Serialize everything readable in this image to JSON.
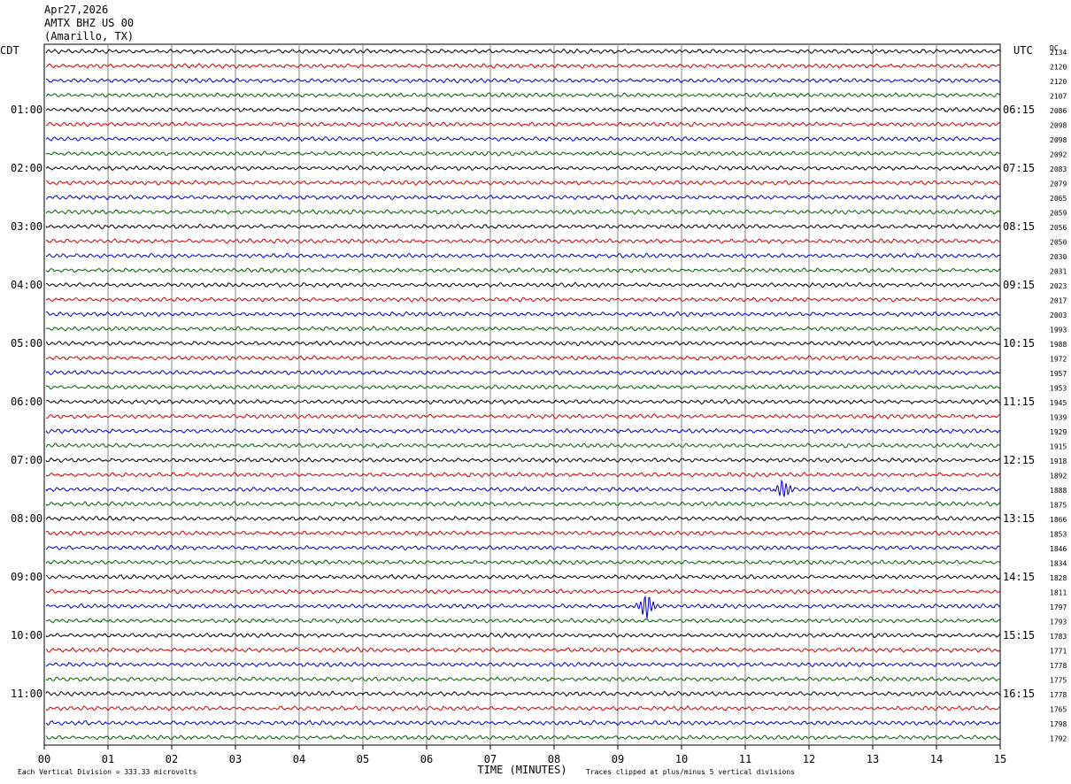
{
  "header": {
    "date": "Apr27,2026",
    "station": "AMTX BHZ US 00",
    "location": "(Amarillo, TX)"
  },
  "chart_data": {
    "type": "line",
    "title": "Apr27,2026 AMTX BHZ US 00 (Amarillo, TX)",
    "xlabel": "TIME (MINUTES)",
    "left_axis_label": "CDT",
    "right_axis_label": "UTC",
    "dc_label": "DC",
    "x_ticks": [
      "00",
      "01",
      "02",
      "03",
      "04",
      "05",
      "06",
      "07",
      "08",
      "09",
      "10",
      "11",
      "12",
      "13",
      "14",
      "15"
    ],
    "xlim": [
      0,
      15
    ],
    "grid": true,
    "left_time_labels": [
      "01:00",
      "02:00",
      "03:00",
      "04:00",
      "05:00",
      "06:00",
      "07:00",
      "08:00",
      "09:00",
      "10:00",
      "11:00"
    ],
    "right_time_labels": [
      "06:15",
      "07:15",
      "08:15",
      "09:15",
      "10:15",
      "11:15",
      "12:15",
      "13:15",
      "14:15",
      "15:15",
      "16:15"
    ],
    "trace_colors": [
      "#000000",
      "#d40000",
      "#0000cc",
      "#006400"
    ],
    "dc_offsets": [
      "2134",
      "2120",
      "2120",
      "2107",
      "2086",
      "2098",
      "2098",
      "2092",
      "2083",
      "2079",
      "2065",
      "2059",
      "2056",
      "2050",
      "2030",
      "2031",
      "2023",
      "2017",
      "2003",
      "1993",
      "1988",
      "1972",
      "1957",
      "1953",
      "1945",
      "1939",
      "1929",
      "1915",
      "1918",
      "1892",
      "1888",
      "1875",
      "1866",
      "1853",
      "1846",
      "1834",
      "1828",
      "1811",
      "1797",
      "1793",
      "1783",
      "1771",
      "1778",
      "1775",
      "1778",
      "1765",
      "1798",
      "1792"
    ],
    "events": [
      {
        "trace_index": 30,
        "minute": 11.6,
        "amplitude_divisions": 3
      },
      {
        "trace_index": 38,
        "minute": 9.45,
        "amplitude_divisions": 4
      }
    ],
    "footer_scale": "Each Vertical Division =  333.33 microvolts",
    "footer_clip": "Traces clipped at plus/minus 5 vertical divisions"
  }
}
